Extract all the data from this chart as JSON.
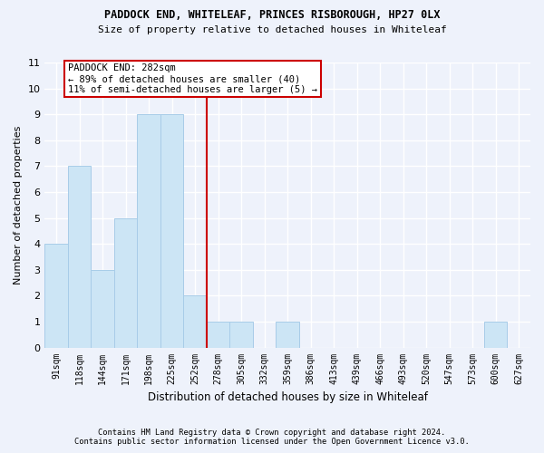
{
  "title": "PADDOCK END, WHITELEAF, PRINCES RISBOROUGH, HP27 0LX",
  "subtitle": "Size of property relative to detached houses in Whiteleaf",
  "xlabel": "Distribution of detached houses by size in Whiteleaf",
  "ylabel": "Number of detached properties",
  "bar_labels": [
    "91sqm",
    "118sqm",
    "144sqm",
    "171sqm",
    "198sqm",
    "225sqm",
    "252sqm",
    "278sqm",
    "305sqm",
    "332sqm",
    "359sqm",
    "386sqm",
    "413sqm",
    "439sqm",
    "466sqm",
    "493sqm",
    "520sqm",
    "547sqm",
    "573sqm",
    "600sqm",
    "627sqm"
  ],
  "bar_values": [
    4,
    7,
    3,
    5,
    9,
    9,
    2,
    1,
    1,
    0,
    1,
    0,
    0,
    0,
    0,
    0,
    0,
    0,
    0,
    1,
    0
  ],
  "bar_color": "#cce5f5",
  "bar_edgecolor": "#a8cce8",
  "annotation_text": "PADDOCK END: 282sqm\n← 89% of detached houses are smaller (40)\n11% of semi-detached houses are larger (5) →",
  "ylim": [
    0,
    11
  ],
  "yticks": [
    0,
    1,
    2,
    3,
    4,
    5,
    6,
    7,
    8,
    9,
    10,
    11
  ],
  "footnote": "Contains HM Land Registry data © Crown copyright and database right 2024.\nContains public sector information licensed under the Open Government Licence v3.0.",
  "background_color": "#eef2fb",
  "grid_color": "#ffffff",
  "ref_line_color": "#cc0000",
  "ref_line_index": 6.5
}
